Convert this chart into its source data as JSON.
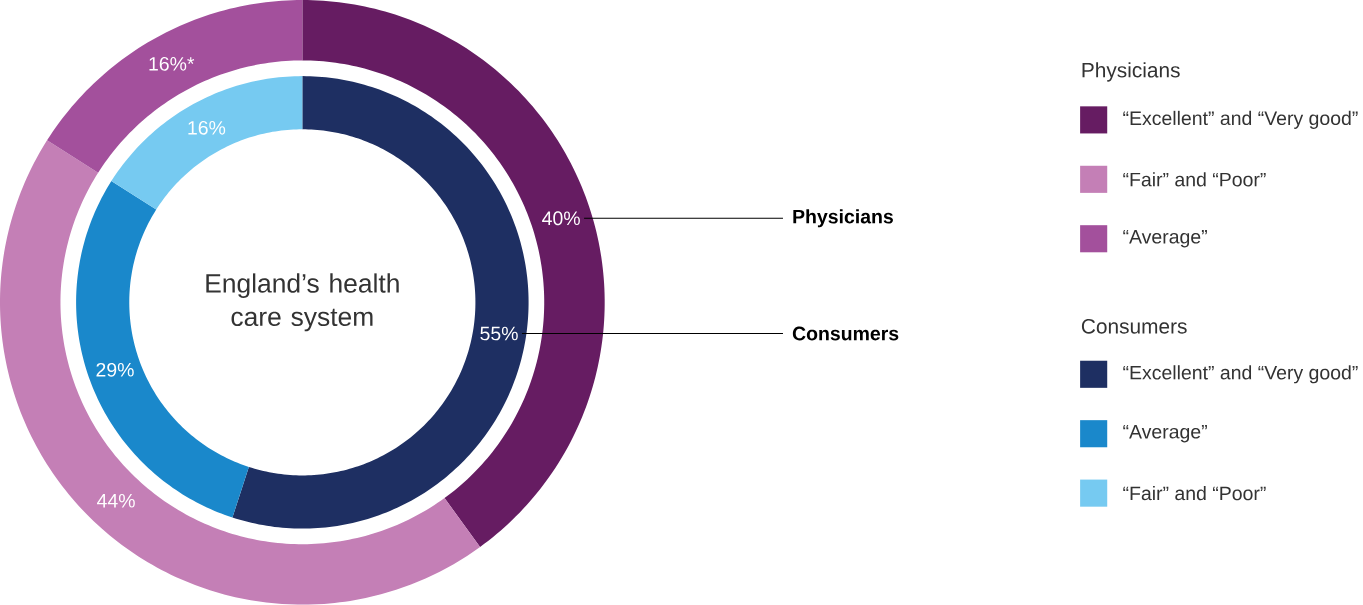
{
  "chart_data": [
    {
      "type": "donut",
      "annotations": [
        "England’s health care system"
      ],
      "legend": "right",
      "categories": [
        "“Excellent” and “Very good”",
        "“Fair” and “Poor”",
        "“Average”"
      ],
      "series": [
        {
          "name": "Physicians",
          "values": [
            40,
            44,
            16
          ],
          "colors": [
            "#661c62",
            "#c47fb6",
            "#a3509c"
          ],
          "value_labels": [
            "40%",
            "44%",
            "16%*"
          ]
        }
      ]
    },
    {
      "type": "donut",
      "legend": "right",
      "categories": [
        "“Excellent” and “Very good”",
        "“Average”",
        "“Fair” and “Poor”"
      ],
      "series": [
        {
          "name": "Consumers",
          "values": [
            55,
            29,
            16
          ],
          "colors": [
            "#1e2f62",
            "#1a88cb",
            "#76caf1"
          ],
          "value_labels": [
            "55%",
            "29%",
            "16%"
          ]
        }
      ]
    }
  ]
}
